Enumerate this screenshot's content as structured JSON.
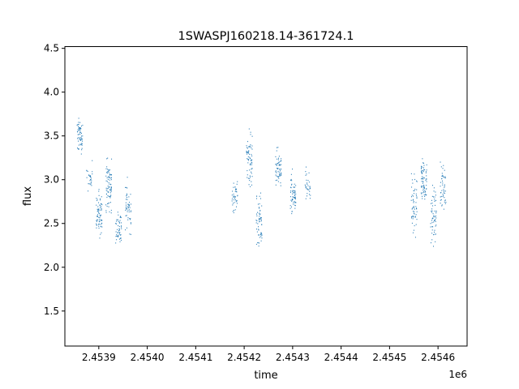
{
  "chart_data": {
    "type": "scatter",
    "title": "1SWASPJ160218.14-361724.1",
    "xlabel": "time",
    "ylabel": "flux",
    "x_offset_label": "1e6",
    "xlim": [
      2.45383,
      2.45466
    ],
    "ylim": [
      1.1,
      4.52
    ],
    "x_ticks": [
      2.4539,
      2.454,
      2.4541,
      2.4542,
      2.4543,
      2.4544,
      2.4545,
      2.4546
    ],
    "x_tick_labels": [
      "2.4539",
      "2.4540",
      "2.4541",
      "2.4542",
      "2.4543",
      "2.4544",
      "2.4545",
      "2.4546"
    ],
    "y_ticks": [
      1.5,
      2.0,
      2.5,
      3.0,
      3.5,
      4.0,
      4.5
    ],
    "y_tick_labels": [
      "1.5",
      "2.0",
      "2.5",
      "3.0",
      "3.5",
      "4.0",
      "4.5"
    ],
    "grid": false,
    "legend": "none",
    "marker_color": "#1f77b4",
    "clusters": [
      {
        "x": 2.45386,
        "y_center": 3.5,
        "y_spread": 0.18,
        "n": 60
      },
      {
        "x": 2.45388,
        "y_center": 3.05,
        "y_spread": 0.15,
        "n": 25
      },
      {
        "x": 2.4539,
        "y_center": 2.6,
        "y_spread": 0.25,
        "n": 70
      },
      {
        "x": 2.45392,
        "y_center": 2.95,
        "y_spread": 0.28,
        "n": 80
      },
      {
        "x": 2.45394,
        "y_center": 2.45,
        "y_spread": 0.22,
        "n": 50
      },
      {
        "x": 2.45396,
        "y_center": 2.7,
        "y_spread": 0.25,
        "n": 50
      },
      {
        "x": 2.45418,
        "y_center": 2.8,
        "y_spread": 0.2,
        "n": 40
      },
      {
        "x": 2.45421,
        "y_center": 3.25,
        "y_spread": 0.3,
        "n": 70
      },
      {
        "x": 2.45423,
        "y_center": 2.5,
        "y_spread": 0.3,
        "n": 60
      },
      {
        "x": 2.45427,
        "y_center": 3.1,
        "y_spread": 0.22,
        "n": 60
      },
      {
        "x": 2.4543,
        "y_center": 2.85,
        "y_spread": 0.22,
        "n": 60
      },
      {
        "x": 2.45433,
        "y_center": 2.95,
        "y_spread": 0.18,
        "n": 30
      },
      {
        "x": 2.45455,
        "y_center": 2.7,
        "y_spread": 0.3,
        "n": 60
      },
      {
        "x": 2.45457,
        "y_center": 3.0,
        "y_spread": 0.22,
        "n": 70
      },
      {
        "x": 2.45459,
        "y_center": 2.6,
        "y_spread": 0.3,
        "n": 60
      },
      {
        "x": 2.45461,
        "y_center": 2.95,
        "y_spread": 0.28,
        "n": 50
      }
    ]
  }
}
